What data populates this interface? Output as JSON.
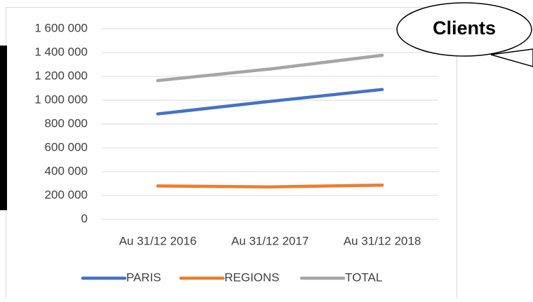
{
  "chart_data": {
    "type": "line",
    "title": "Clients",
    "categories": [
      "Au 31/12 2016",
      "Au 31/12 2017",
      "Au 31/12 2018"
    ],
    "series": [
      {
        "name": "PARIS",
        "color": "#4472c4",
        "values": [
          885000,
          990000,
          1090000
        ]
      },
      {
        "name": "REGIONS",
        "color": "#ed7d31",
        "values": [
          280000,
          272000,
          287000
        ]
      },
      {
        "name": "TOTAL",
        "color": "#a5a5a5",
        "values": [
          1165000,
          1262000,
          1377000
        ]
      }
    ],
    "ylim": [
      0,
      1600000
    ],
    "yticks": [
      0,
      {
        "value": 200000,
        "label": "200 000"
      },
      {
        "value": 400000,
        "label": "400 000"
      },
      {
        "value": 600000,
        "label": "600 000"
      },
      {
        "value": 800000,
        "label": "800 000"
      },
      {
        "value": 1000000,
        "label": "1 000 000"
      },
      {
        "value": 1200000,
        "label": "1 200 000"
      },
      {
        "value": 1400000,
        "label": "1 400 000"
      },
      {
        "value": 1600000,
        "label": "1 600 000"
      }
    ],
    "grid": true,
    "legend": "bottom"
  }
}
